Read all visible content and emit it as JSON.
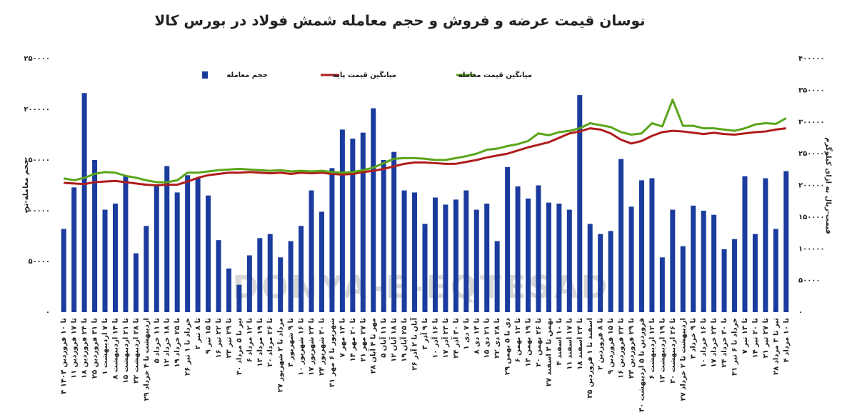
{
  "chart_data": {
    "type": "bar-line",
    "title": "نوسان قیمت عرضه و فروش و حجم معامله شمش فولاد در بورس کالا",
    "ylabel": "حجم معامله-تن",
    "y2label": "قیمت-ریال به ازای کیلوگرم",
    "watermark": "DONYA-E-EQTESAD",
    "categories": [
      "۴ تا ۱۰ فروردین ۱۴۰۳",
      "۱۱ تا ۱۷ فروردین",
      "۱۸ تا ۲۴ فروردین",
      "۲۵ تا ۳۱ فروردین",
      "۱ تا ۷ اردیبهشت",
      "۸ تا ۱۴ اردیبهشت",
      "۱۵ تا ۲۱ اردیبهشت",
      "۲۲ تا ۲۸ اردیبهشت",
      "۲۹ اردیبهشت تا ۴ خرداد",
      "۵ تا ۱۱ خرداد",
      "۱۲ تا ۱۸ خرداد",
      "۱۹ تا ۲۵ خرداد",
      "۲۶ خرداد تا ۱ تیر",
      "۲ تا ۸ تیر",
      "۹ تا ۱۵ تیر",
      "۱۶ تا ۲۲ تیر",
      "۲۳ تا ۲۹ تیر",
      "۳۰ تیر تا ۵ مرداد",
      "۶ تا ۱۲ مرداد",
      "۱۳ تا ۱۹ مرداد",
      "۲۰ تا ۲۶ مرداد",
      "۲۷ مرداد تا ۲ شهریور",
      "۳ تا ۹ شهریور",
      "۱۰ تا ۱۶ شهریور",
      "۱۷ تا ۲۳ شهریور",
      "۲۴ تا ۳۰ شهریور",
      "۳۱ شهریور تا ۶ مهر",
      "۷ تا ۱۳ مهر",
      "۱۴ تا ۲۰ مهر",
      "۲۱ تا ۲۷ مهر",
      "۲۸ مهر تا ۴ آبان",
      "۵ تا ۱۱ آبان",
      "۱۲ تا ۱۸ آبان",
      "۱۹ تا ۲۵ آبان",
      "۲۶ آبان تا ۲ آذر",
      "۳ تا ۹ آذر",
      "۱۰ تا ۱۶ آذر",
      "۱۷ تا ۲۳ آذر",
      "۲۴ تا ۳۰ آذر",
      "۱ تا ۷ دی",
      "۸ تا ۱۴ دی",
      "۱۵ تا ۲۱ دی",
      "۲۲ تا ۲۸ دی",
      "۲۹ دی تا ۵ بهمن",
      "۶ تا ۱۲ بهمن",
      "۱۳ تا ۱۹ بهمن",
      "۲۰ تا ۲۶ بهمن",
      "۲۷ بهمن تا ۳ اسفند",
      "۴ تا ۱۰ اسفند",
      "۱۱ تا ۱۷ اسفند",
      "۱۸ تا ۲۴ اسفند",
      "۲۵ اسفند تا ۱ فروردین",
      "۲ تا ۸ فروردین",
      "۹ تا ۱۵ فروردین",
      "۱۶ تا ۲۲ فروردین",
      "۲۳ تا ۲۹ فروردین",
      "۳۰ فروردین تا ۵ اردیبهشت",
      "۶ تا ۱۲ اردیبهشت",
      "۱۳ تا ۱۹ اردیبهشت",
      "۲۰ تا ۲۶ اردیبهشت",
      "۲۷ اردیبهشت تا ۲ خرداد",
      "۳ تا ۹ خرداد",
      "۱۰ تا ۱۶ خرداد",
      "۱۷ تا ۲۳ خرداد",
      "۲۴ تا ۳۰ خرداد",
      "۳۱ خرداد تا ۶ تیر",
      "۷ تا ۱۳ تیر",
      "۱۴ تا ۲۰ تیر",
      "۲۱ تا ۲۷ تیر",
      "۲۸ تیر تا ۳ مرداد",
      "۴ تا ۱۰ مرداد"
    ],
    "series": [
      {
        "name": "حجم معامله",
        "type": "bar",
        "color": "#1b3c9e",
        "values": [
          82000,
          123000,
          216000,
          150000,
          101000,
          107000,
          134000,
          58000,
          85000,
          125000,
          144000,
          118000,
          135000,
          132000,
          115000,
          71000,
          43000,
          27000,
          56000,
          73000,
          77000,
          54000,
          70000,
          85000,
          120000,
          99000,
          142000,
          180000,
          171000,
          177000,
          201000,
          150000,
          158000,
          120000,
          118000,
          87000,
          113000,
          106000,
          111000,
          120000,
          101000,
          107000,
          70000,
          143000,
          124000,
          112000,
          125000,
          108000,
          107000,
          101000,
          214000,
          87000,
          77000,
          80000,
          151000,
          104000,
          130000,
          132000,
          54000,
          101000,
          65000,
          105000,
          100000,
          96000,
          62000,
          72000,
          134000,
          77000,
          132000,
          82000,
          139000
        ]
      },
      {
        "name": "میانگین قیمت پایه",
        "type": "line",
        "axis": "y2",
        "color": "#b01c1c",
        "values": [
          204000,
          203000,
          202000,
          205000,
          206000,
          207000,
          205000,
          203000,
          201000,
          200000,
          201000,
          201000,
          206000,
          212000,
          216000,
          218000,
          220000,
          220000,
          221000,
          220000,
          219000,
          220000,
          218000,
          220000,
          219000,
          220000,
          218000,
          217000,
          218000,
          221000,
          223000,
          226000,
          230000,
          234000,
          236000,
          236000,
          235000,
          234000,
          234000,
          237000,
          240000,
          244000,
          247000,
          250000,
          255000,
          260000,
          264000,
          268000,
          275000,
          282000,
          285000,
          290000,
          288000,
          282000,
          272000,
          266000,
          270000,
          278000,
          284000,
          286000,
          285000,
          283000,
          281000,
          283000,
          281000,
          280000,
          282000,
          284000,
          285000,
          288000,
          290000
        ]
      },
      {
        "name": "میانگین قیمت معامله",
        "type": "line",
        "axis": "y2",
        "color": "#5aa51a",
        "values": [
          211000,
          208000,
          212000,
          218000,
          221000,
          220000,
          215000,
          212000,
          208000,
          205000,
          205000,
          208000,
          220000,
          220000,
          222000,
          224000,
          225000,
          226000,
          225000,
          224000,
          223000,
          224000,
          222000,
          223000,
          222000,
          223000,
          221000,
          220000,
          221000,
          224000,
          228000,
          235000,
          242000,
          243000,
          243000,
          242000,
          240000,
          240000,
          243000,
          246000,
          250000,
          256000,
          258000,
          262000,
          265000,
          270000,
          282000,
          279000,
          284000,
          286000,
          290000,
          298000,
          295000,
          292000,
          284000,
          280000,
          282000,
          298000,
          293000,
          335000,
          294000,
          294000,
          290000,
          290000,
          288000,
          286000,
          290000,
          296000,
          298000,
          297000,
          306000
        ]
      }
    ],
    "ylim": [
      0,
      250000
    ],
    "yticks": [
      {
        "value": 0,
        "label": "۰"
      },
      {
        "value": 50000,
        "label": "۵۰۰۰۰"
      },
      {
        "value": 100000,
        "label": "۱۰۰۰۰۰"
      },
      {
        "value": 150000,
        "label": "۱۵۰۰۰۰"
      },
      {
        "value": 200000,
        "label": "۲۰۰۰۰۰"
      },
      {
        "value": 250000,
        "label": "۲۵۰۰۰۰"
      }
    ],
    "y2lim": [
      0,
      400000
    ],
    "y2ticks": [
      {
        "value": 0,
        "label": "۰"
      },
      {
        "value": 50000,
        "label": "۵۰۰۰۰"
      },
      {
        "value": 100000,
        "label": "۱۰۰۰۰۰"
      },
      {
        "value": 150000,
        "label": "۱۵۰۰۰۰"
      },
      {
        "value": 200000,
        "label": "۲۰۰۰۰۰"
      },
      {
        "value": 250000,
        "label": "۲۵۰۰۰۰"
      },
      {
        "value": 300000,
        "label": "۳۰۰۰۰۰"
      },
      {
        "value": 350000,
        "label": "۳۵۰۰۰۰"
      },
      {
        "value": 400000,
        "label": "۴۰۰۰۰۰"
      }
    ],
    "grid": false
  }
}
